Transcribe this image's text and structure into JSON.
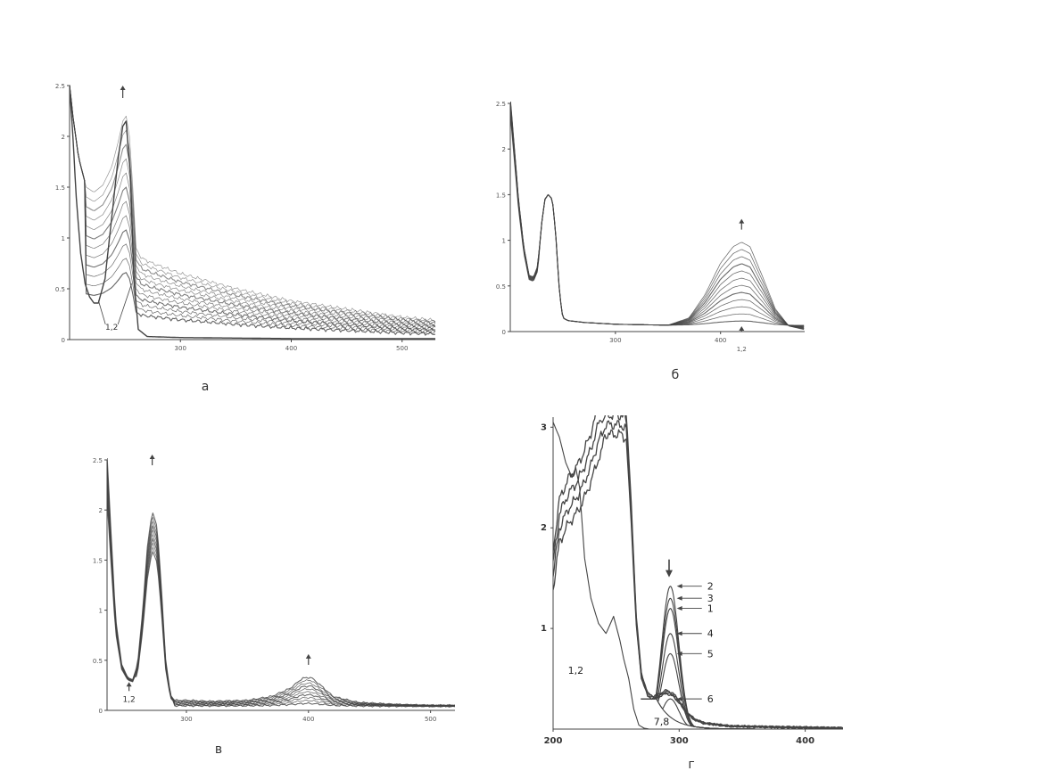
{
  "colors": {
    "curve": "#444444",
    "axis": "#444444",
    "text": "#333333",
    "background": "#ffffff"
  },
  "chart_data": [
    {
      "id": "a",
      "type": "line",
      "caption": "а",
      "xlim": [
        200,
        530
      ],
      "ylim": [
        0,
        2.5
      ],
      "x_ticks": [
        300,
        400,
        500
      ],
      "y_ticks": [
        0,
        0.5,
        1,
        1.5,
        2,
        2.5
      ],
      "y_tick_labels": [
        "0",
        "0.5",
        "1",
        "1.5",
        "2",
        "2.5"
      ],
      "annotations": [
        {
          "text": "1,2",
          "x": 238,
          "y": 0.08
        }
      ],
      "arrow_up_x": 248,
      "series_count": 12,
      "series_base": {
        "x": [
          200,
          203,
          208,
          215,
          222,
          230,
          238,
          244,
          248,
          251,
          254,
          257,
          260,
          265,
          275,
          300,
          350,
          400,
          450,
          500,
          530
        ],
        "y": [
          2.5,
          2.2,
          1.8,
          1.5,
          1.45,
          1.52,
          1.7,
          1.95,
          2.15,
          2.2,
          2.0,
          1.5,
          0.9,
          0.8,
          0.75,
          0.65,
          0.5,
          0.38,
          0.3,
          0.22,
          0.19
        ]
      },
      "series_first": {
        "x": [
          200,
          203,
          206,
          210,
          214,
          218,
          222,
          226,
          232,
          238,
          244,
          248,
          251,
          255,
          258,
          262,
          270,
          300,
          400,
          530
        ],
        "y": [
          2.5,
          2.0,
          1.4,
          0.85,
          0.55,
          0.42,
          0.36,
          0.36,
          0.6,
          1.2,
          1.8,
          2.1,
          2.15,
          1.6,
          0.6,
          0.1,
          0.03,
          0.02,
          0.01,
          0.01
        ]
      }
    },
    {
      "id": "б",
      "type": "line",
      "caption": "б",
      "xlim": [
        200,
        480
      ],
      "ylim": [
        0,
        2.5
      ],
      "x_ticks": [
        300,
        400
      ],
      "y_ticks": [
        0,
        0.5,
        1,
        1.5,
        2,
        2.5
      ],
      "y_tick_labels": [
        "0",
        "0.5",
        "1",
        "1.5",
        "2",
        "2.5"
      ],
      "annotations": [
        {
          "text": "1,2",
          "x": 420,
          "y": -0.17
        }
      ],
      "arrow_up_x": 420,
      "series_count": 12,
      "series_base": {
        "x": [
          200,
          203,
          208,
          213,
          218,
          222,
          226,
          230,
          233,
          236,
          240,
          243,
          247,
          250,
          255,
          270,
          300,
          350,
          370,
          385,
          400,
          412,
          420,
          428,
          440,
          452,
          465,
          480
        ],
        "y": [
          2.5,
          2.1,
          1.4,
          0.9,
          0.6,
          0.58,
          0.7,
          1.2,
          1.45,
          1.5,
          1.45,
          1.1,
          0.4,
          0.15,
          0.12,
          0.1,
          0.08,
          0.07,
          0.15,
          0.4,
          0.75,
          0.93,
          0.98,
          0.93,
          0.6,
          0.25,
          0.06,
          0.02
        ]
      }
    },
    {
      "id": "в",
      "type": "line",
      "caption": "в",
      "xlim": [
        235,
        520
      ],
      "ylim": [
        0,
        2.5
      ],
      "x_ticks": [
        300,
        400,
        500
      ],
      "y_ticks": [
        0,
        0.5,
        1,
        1.5,
        2,
        2.5
      ],
      "y_tick_labels": [
        "0",
        "0.5",
        "1",
        "1.5",
        "2",
        "2.5"
      ],
      "annotations": [
        {
          "text": "1,2",
          "x": 253,
          "y": 0.05
        }
      ],
      "arrow_up_x": [
        272,
        400
      ],
      "series_count": 10,
      "series_base": {
        "x": [
          235,
          238,
          242,
          247,
          252,
          256,
          260,
          264,
          268,
          272,
          276,
          279,
          283,
          287,
          290,
          300,
          320,
          350,
          370,
          385,
          395,
          402,
          410,
          420,
          440,
          470,
          500,
          520
        ],
        "y": [
          2.5,
          1.8,
          0.9,
          0.45,
          0.32,
          0.3,
          0.45,
          0.95,
          1.6,
          1.95,
          1.8,
          1.3,
          0.5,
          0.15,
          0.1,
          0.1,
          0.09,
          0.1,
          0.14,
          0.22,
          0.32,
          0.33,
          0.25,
          0.14,
          0.08,
          0.06,
          0.05,
          0.05
        ]
      }
    },
    {
      "id": "г",
      "type": "line",
      "caption": "г",
      "xlim": [
        200,
        430
      ],
      "ylim": [
        0,
        3.1
      ],
      "x_ticks": [
        200,
        300,
        400
      ],
      "x_tick_labels": [
        "200",
        "300",
        "400"
      ],
      "y_ticks": [
        1,
        2,
        3
      ],
      "y_tick_labels": [
        "1",
        "2",
        "3"
      ],
      "curve_labels": [
        "2",
        "3",
        "1",
        "4",
        "5",
        "6"
      ],
      "label_12": "1,2",
      "label_78": "7,8",
      "peaks_near_295": [
        1.42,
        1.3,
        1.2,
        0.95,
        0.75,
        0.3,
        0.05
      ],
      "series_broad": {
        "x": [
          200,
          205,
          212,
          218,
          224,
          230,
          236,
          242,
          248,
          254,
          258,
          262,
          266,
          270,
          275,
          280,
          285,
          290,
          295,
          300,
          305,
          312,
          320,
          340,
          380,
          430
        ],
        "y": [
          1.6,
          2.1,
          2.3,
          2.4,
          2.55,
          2.75,
          3.0,
          3.15,
          3.15,
          3.15,
          3.1,
          2.2,
          1.1,
          0.55,
          0.35,
          0.32,
          0.35,
          0.38,
          0.35,
          0.28,
          0.18,
          0.1,
          0.06,
          0.03,
          0.02,
          0.01
        ]
      },
      "series_12": {
        "x": [
          200,
          205,
          210,
          215,
          218,
          221,
          225,
          230,
          236,
          242,
          248,
          253,
          256,
          260,
          264,
          268,
          272,
          276,
          282,
          290,
          300,
          320,
          350,
          430
        ],
        "y": [
          3.05,
          2.9,
          2.65,
          2.5,
          2.6,
          2.4,
          1.7,
          1.3,
          1.05,
          0.95,
          1.12,
          0.88,
          0.7,
          0.5,
          0.2,
          0.04,
          0.01,
          0.0,
          0.0,
          0.0,
          0.0,
          0.0,
          0.0,
          0.0
        ]
      }
    }
  ]
}
